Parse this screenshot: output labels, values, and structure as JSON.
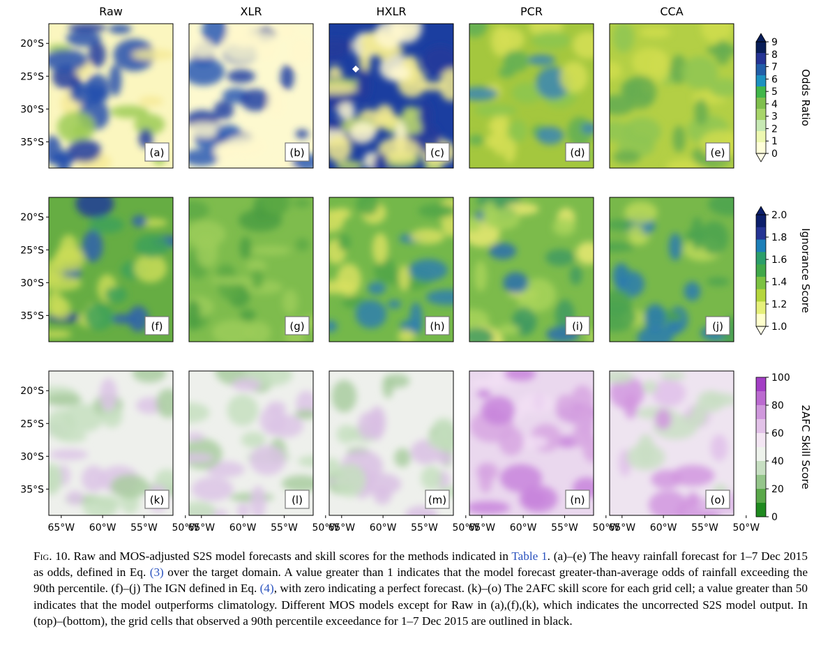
{
  "columns": [
    "Raw",
    "XLR",
    "HXLR",
    "PCR",
    "CCA"
  ],
  "panel_labels": [
    [
      "(a)",
      "(b)",
      "(c)",
      "(d)",
      "(e)"
    ],
    [
      "(f)",
      "(g)",
      "(h)",
      "(i)",
      "(j)"
    ],
    [
      "(k)",
      "(l)",
      "(m)",
      "(n)",
      "(o)"
    ]
  ],
  "lat_ticks": [
    "20°S",
    "25°S",
    "30°S",
    "35°S"
  ],
  "lon_ticks": [
    "65°W",
    "60°W",
    "55°W",
    "50°W"
  ],
  "colorbars": [
    {
      "label": "Odds Ratio",
      "ticks": [
        "9",
        "8",
        "7",
        "6",
        "5",
        "4",
        "3",
        "2",
        "1",
        "0"
      ],
      "colors": [
        "#ffffd9",
        "#edf8b1",
        "#c7e9b4",
        "#a8d56a",
        "#7fbf4d",
        "#41b64a",
        "#1d91c0",
        "#225ea8",
        "#253494",
        "#081d58"
      ]
    },
    {
      "label": "Ignorance Score",
      "ticks": [
        "2.0",
        "1.8",
        "1.6",
        "1.4",
        "1.2",
        "1.0"
      ],
      "colors": [
        "#ffffcc",
        "#e6f07a",
        "#b5d63d",
        "#7cc242",
        "#41a84a",
        "#2c9e6a",
        "#1d7fb8",
        "#253494",
        "#0c1f6b"
      ]
    },
    {
      "label": "2AFC Skill Score",
      "ticks": [
        "100",
        "80",
        "60",
        "40",
        "20",
        "0"
      ],
      "colors": [
        "#1f8a1f",
        "#5aa84a",
        "#94c58a",
        "#c7dfc2",
        "#eef3ec",
        "#f3e6f3",
        "#e2c2e8",
        "#cf98dc",
        "#bb6bd0",
        "#a33fc4"
      ]
    }
  ],
  "caption": {
    "fig_label": "Fig. 10.",
    "t1": " Raw and MOS-adjusted S2S model forecasts and skill scores for the methods indicated in ",
    "ref1": "Table 1",
    "t2": ". (a)–(e) The heavy rainfall forecast for 1–7 Dec 2015 as odds",
    "t2b": ", defined in Eq. ",
    "ref2": "(3)",
    "t3": " over the target domain. A value greater than 1 indicates that the model forecast greater-than-average odds of rainfall exceeding the 90th percentile. (f)–(j) The IGN defined in Eq. ",
    "ref3": "(4)",
    "t4": ", with zero indicating a perfect forecast. (k)–(o) The 2AFC skill score for each grid cell; a value greater than 50 indicates that the model outperforms climatology. Different MOS models except for Raw in (a),(f),(k), which indicates the uncorrected S2S model output. In (top)–(bottom), the grid cells that observed a 90th percentile exceedance for 1–7 Dec 2015 are outlined in black."
  },
  "palette": {
    "link": "#2a52be"
  }
}
